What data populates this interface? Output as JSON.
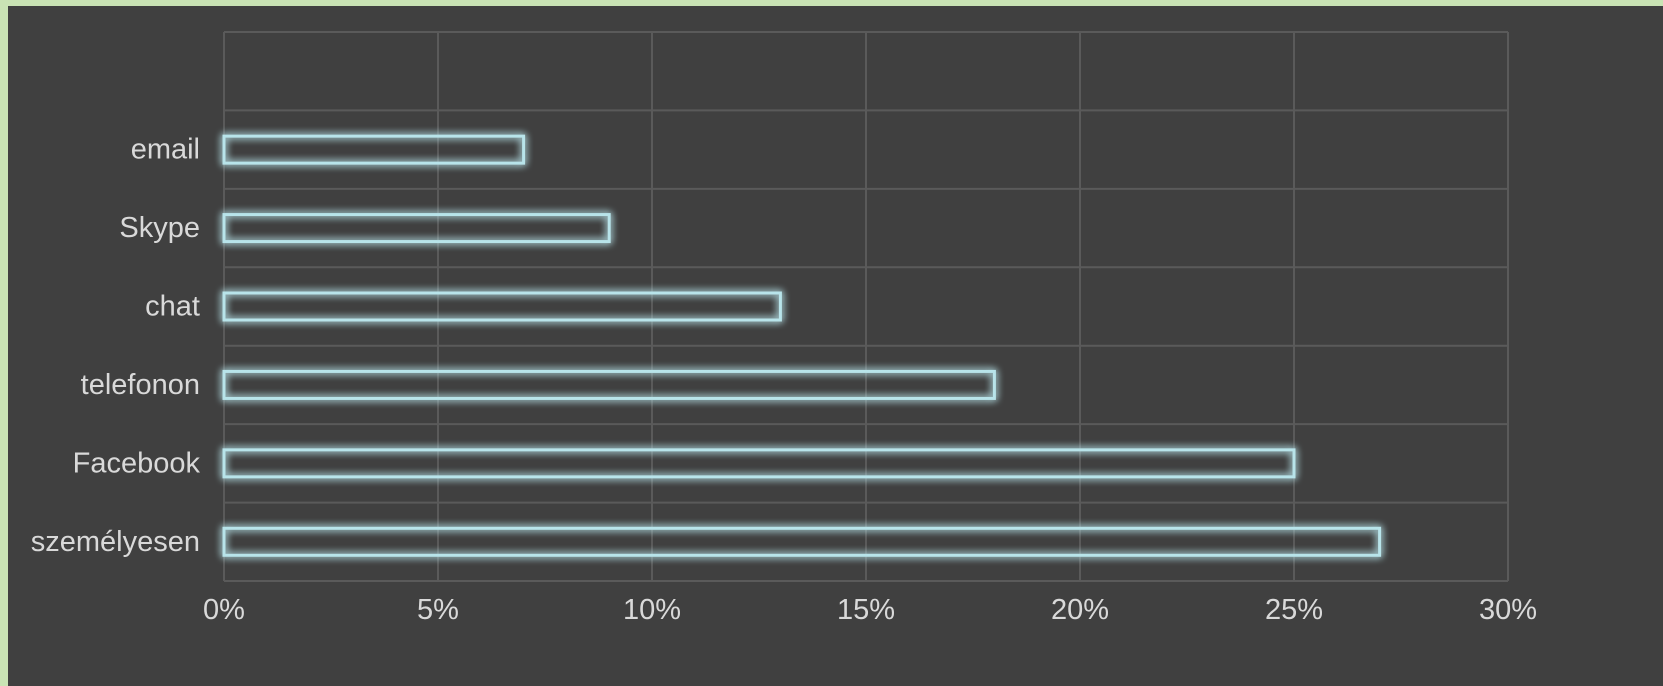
{
  "chart_data": {
    "type": "bar",
    "orientation": "horizontal",
    "title": "",
    "xlabel": "",
    "ylabel": "",
    "categories": [
      "személyesen",
      "Facebook",
      "telefonon",
      "chat",
      "Skype",
      "email"
    ],
    "values": [
      0.27,
      0.25,
      0.18,
      0.13,
      0.09,
      0.07
    ],
    "xlim": [
      0,
      0.3
    ],
    "x_ticks": [
      0,
      0.05,
      0.1,
      0.15,
      0.2,
      0.25,
      0.3
    ],
    "x_tick_labels": [
      "0%",
      "5%",
      "10%",
      "15%",
      "20%",
      "25%",
      "30%"
    ],
    "grid": true,
    "legend": "none",
    "colors": {
      "background": "#404040",
      "outer_background": "#c9e3b4",
      "gridline": "#5a5a5a",
      "bar_outline": "#b8e4ea",
      "bar_glow": "#7fb5bd",
      "text": "#d9d9d9"
    }
  }
}
